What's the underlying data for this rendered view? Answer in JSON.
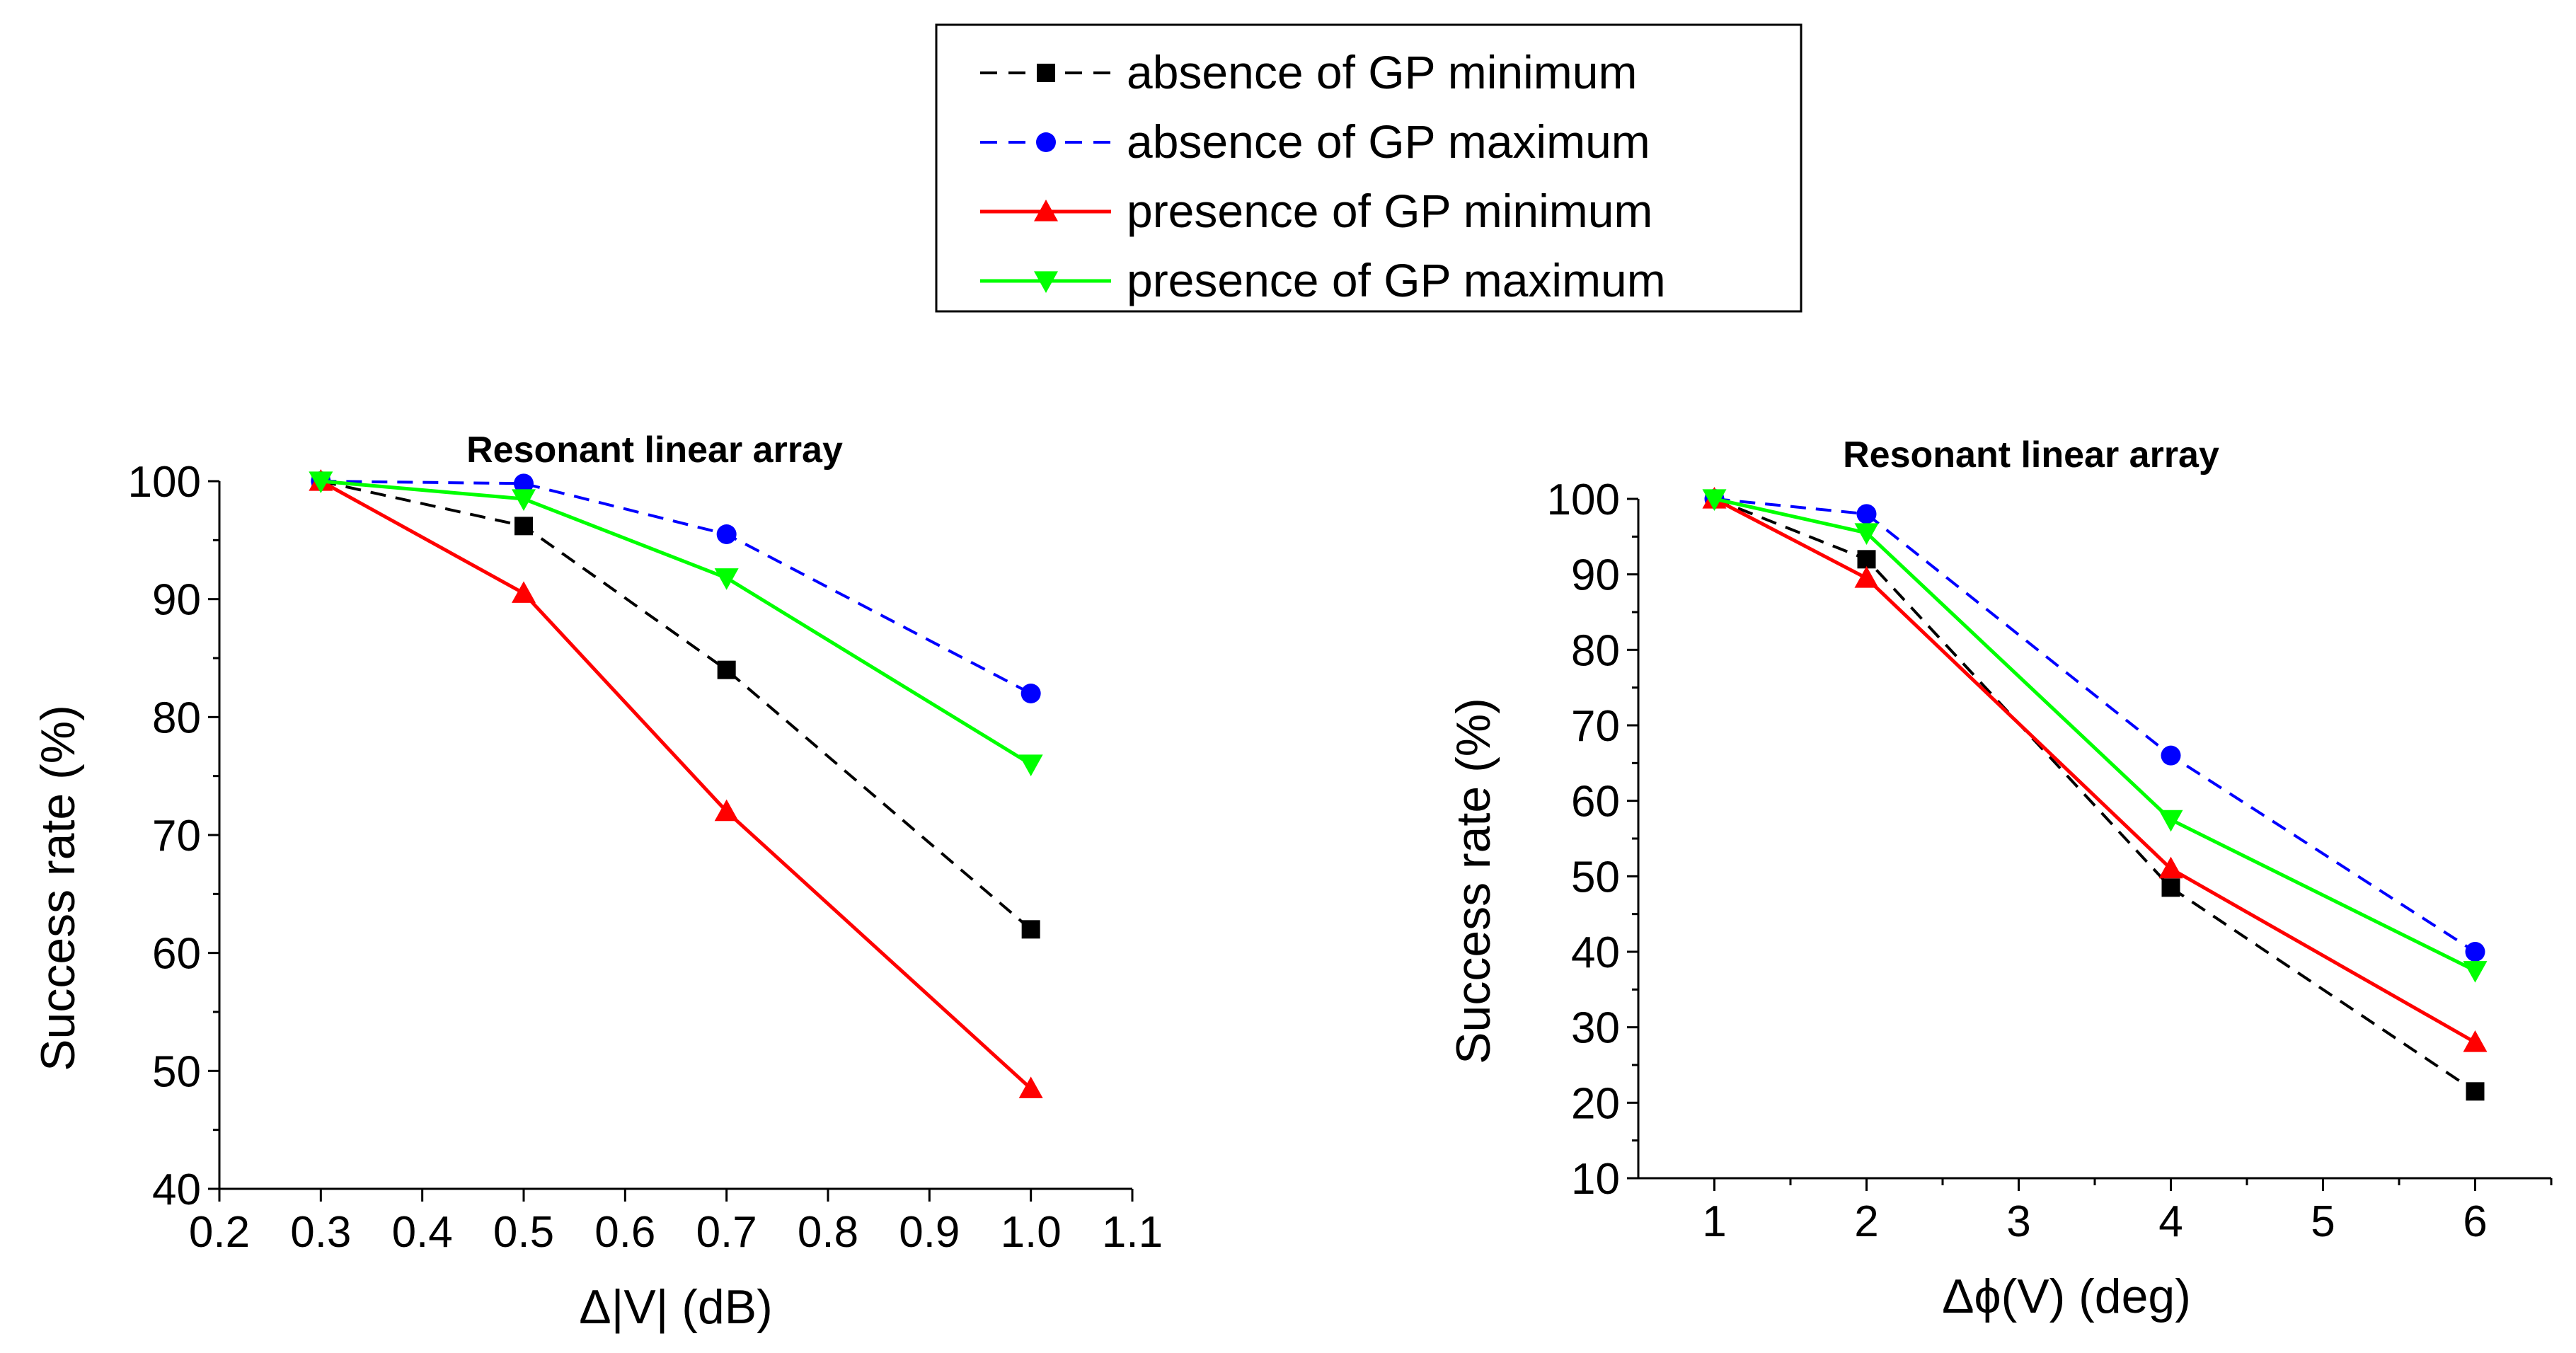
{
  "legend": {
    "entries": [
      {
        "label": "absence of GP minimum",
        "color": "#000000",
        "dash": "dashed",
        "marker": "square"
      },
      {
        "label": "absence of GP maximum",
        "color": "#0000ff",
        "dash": "dashed",
        "marker": "circle"
      },
      {
        "label": "presence of GP minimum",
        "color": "#ff0000",
        "dash": "solid",
        "marker": "triangle-up"
      },
      {
        "label": "presence of GP maximum",
        "color": "#00ff00",
        "dash": "solid",
        "marker": "triangle-down"
      }
    ]
  },
  "chart_data": [
    {
      "type": "line",
      "title": "Resonant linear array",
      "xlabel": "Δ|V| (dB)",
      "ylabel": "Success rate (%)",
      "xlim": [
        0.2,
        1.1
      ],
      "ylim": [
        40,
        100
      ],
      "xticks": [
        0.2,
        0.3,
        0.4,
        0.5,
        0.6,
        0.7,
        0.8,
        0.9,
        1.0,
        1.1
      ],
      "xtick_labels": [
        "0.2",
        "0.3",
        "0.4",
        "0.5",
        "0.6",
        "0.7",
        "0.8",
        "0.9",
        "1.0",
        "1.1"
      ],
      "yticks": [
        40,
        50,
        60,
        70,
        80,
        90,
        100
      ],
      "ytick_labels": [
        "40",
        "50",
        "60",
        "70",
        "80",
        "90",
        "100"
      ],
      "x": [
        0.3,
        0.5,
        0.7,
        1.0
      ],
      "series": [
        {
          "name": "absence of GP minimum",
          "color": "#000000",
          "dash": "dashed",
          "marker": "square",
          "values": [
            100,
            96.2,
            84,
            62
          ]
        },
        {
          "name": "absence of GP maximum",
          "color": "#0000ff",
          "dash": "dashed",
          "marker": "circle",
          "values": [
            100,
            99.8,
            95.5,
            82
          ]
        },
        {
          "name": "presence of GP minimum",
          "color": "#ff0000",
          "dash": "solid",
          "marker": "triangle-up",
          "values": [
            100,
            90.5,
            72,
            48.5
          ]
        },
        {
          "name": "presence of GP maximum",
          "color": "#00ff00",
          "dash": "solid",
          "marker": "triangle-down",
          "values": [
            100,
            98.5,
            91.8,
            76
          ]
        }
      ]
    },
    {
      "type": "line",
      "title": "Resonant linear array",
      "xlabel": "Δϕ(V)  (deg)",
      "ylabel": "Success rate (%)",
      "xlim": [
        0.5,
        6.5
      ],
      "ylim": [
        10,
        100
      ],
      "xticks": [
        1,
        2,
        3,
        4,
        5,
        6
      ],
      "xtick_labels": [
        "1",
        "2",
        "3",
        "4",
        "5",
        "6"
      ],
      "yticks": [
        10,
        20,
        30,
        40,
        50,
        60,
        70,
        80,
        90,
        100
      ],
      "ytick_labels": [
        "10",
        "20",
        "30",
        "40",
        "50",
        "60",
        "70",
        "80",
        "90",
        "100"
      ],
      "x": [
        1,
        2,
        4,
        6
      ],
      "series": [
        {
          "name": "absence of GP minimum",
          "color": "#000000",
          "dash": "dashed",
          "marker": "square",
          "values": [
            100,
            92,
            48.5,
            21.5
          ]
        },
        {
          "name": "absence of GP maximum",
          "color": "#0000ff",
          "dash": "dashed",
          "marker": "circle",
          "values": [
            100,
            98,
            66,
            40
          ]
        },
        {
          "name": "presence of GP minimum",
          "color": "#ff0000",
          "dash": "solid",
          "marker": "triangle-up",
          "values": [
            100,
            89.5,
            51,
            28
          ]
        },
        {
          "name": "presence of GP maximum",
          "color": "#00ff00",
          "dash": "solid",
          "marker": "triangle-down",
          "values": [
            100,
            95.5,
            57.5,
            37.5
          ]
        }
      ]
    }
  ]
}
